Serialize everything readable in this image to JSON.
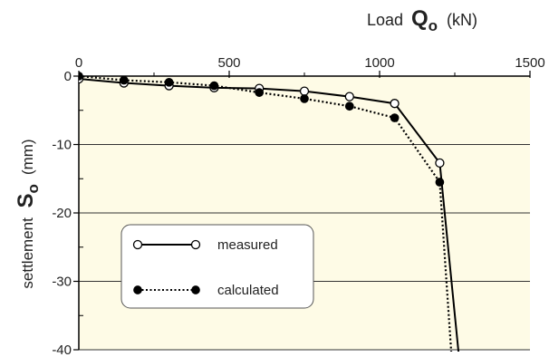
{
  "chart_data": {
    "type": "line",
    "xlabel": {
      "prefix": "Load",
      "symbol": "Q",
      "subscript": "o",
      "unit": "(kN)"
    },
    "ylabel": {
      "prefix": "settlement",
      "symbol": "S",
      "subscript": "o",
      "unit": "(mm)"
    },
    "xlim": [
      0,
      1500
    ],
    "ylim": [
      -40,
      0
    ],
    "x_ticks": [
      "0",
      "500",
      "1000",
      "1500"
    ],
    "x_tick_values": [
      0,
      500,
      1000,
      1500
    ],
    "y_ticks": [
      "0",
      "-10",
      "-20",
      "-30",
      "-40"
    ],
    "y_tick_values": [
      0,
      -10,
      -20,
      -30,
      -40
    ],
    "x_axis_position": "top",
    "grid": "horizontal",
    "background_color": "#fefbe6",
    "legend_position": "bottom-left",
    "series": [
      {
        "name": "measured",
        "style": "solid",
        "marker": "open-circle",
        "color": "#000000",
        "points": [
          {
            "x": 0,
            "y": -0.4
          },
          {
            "x": 150,
            "y": -1.0
          },
          {
            "x": 300,
            "y": -1.4
          },
          {
            "x": 450,
            "y": -1.7
          },
          {
            "x": 600,
            "y": -1.8
          },
          {
            "x": 750,
            "y": -2.2
          },
          {
            "x": 900,
            "y": -3.0
          },
          {
            "x": 1050,
            "y": -4.0
          },
          {
            "x": 1200,
            "y": -12.7
          },
          {
            "x": 1265,
            "y": -41.5
          }
        ],
        "marker_count": 9
      },
      {
        "name": "calculated",
        "style": "dotted",
        "marker": "filled-circle",
        "color": "#000000",
        "points": [
          {
            "x": 0,
            "y": 0.0
          },
          {
            "x": 150,
            "y": -0.6
          },
          {
            "x": 300,
            "y": -0.9
          },
          {
            "x": 450,
            "y": -1.4
          },
          {
            "x": 600,
            "y": -2.4
          },
          {
            "x": 750,
            "y": -3.3
          },
          {
            "x": 900,
            "y": -4.4
          },
          {
            "x": 1050,
            "y": -6.1
          },
          {
            "x": 1200,
            "y": -15.5
          },
          {
            "x": 1240,
            "y": -41.5
          }
        ],
        "marker_count": 9
      }
    ]
  }
}
